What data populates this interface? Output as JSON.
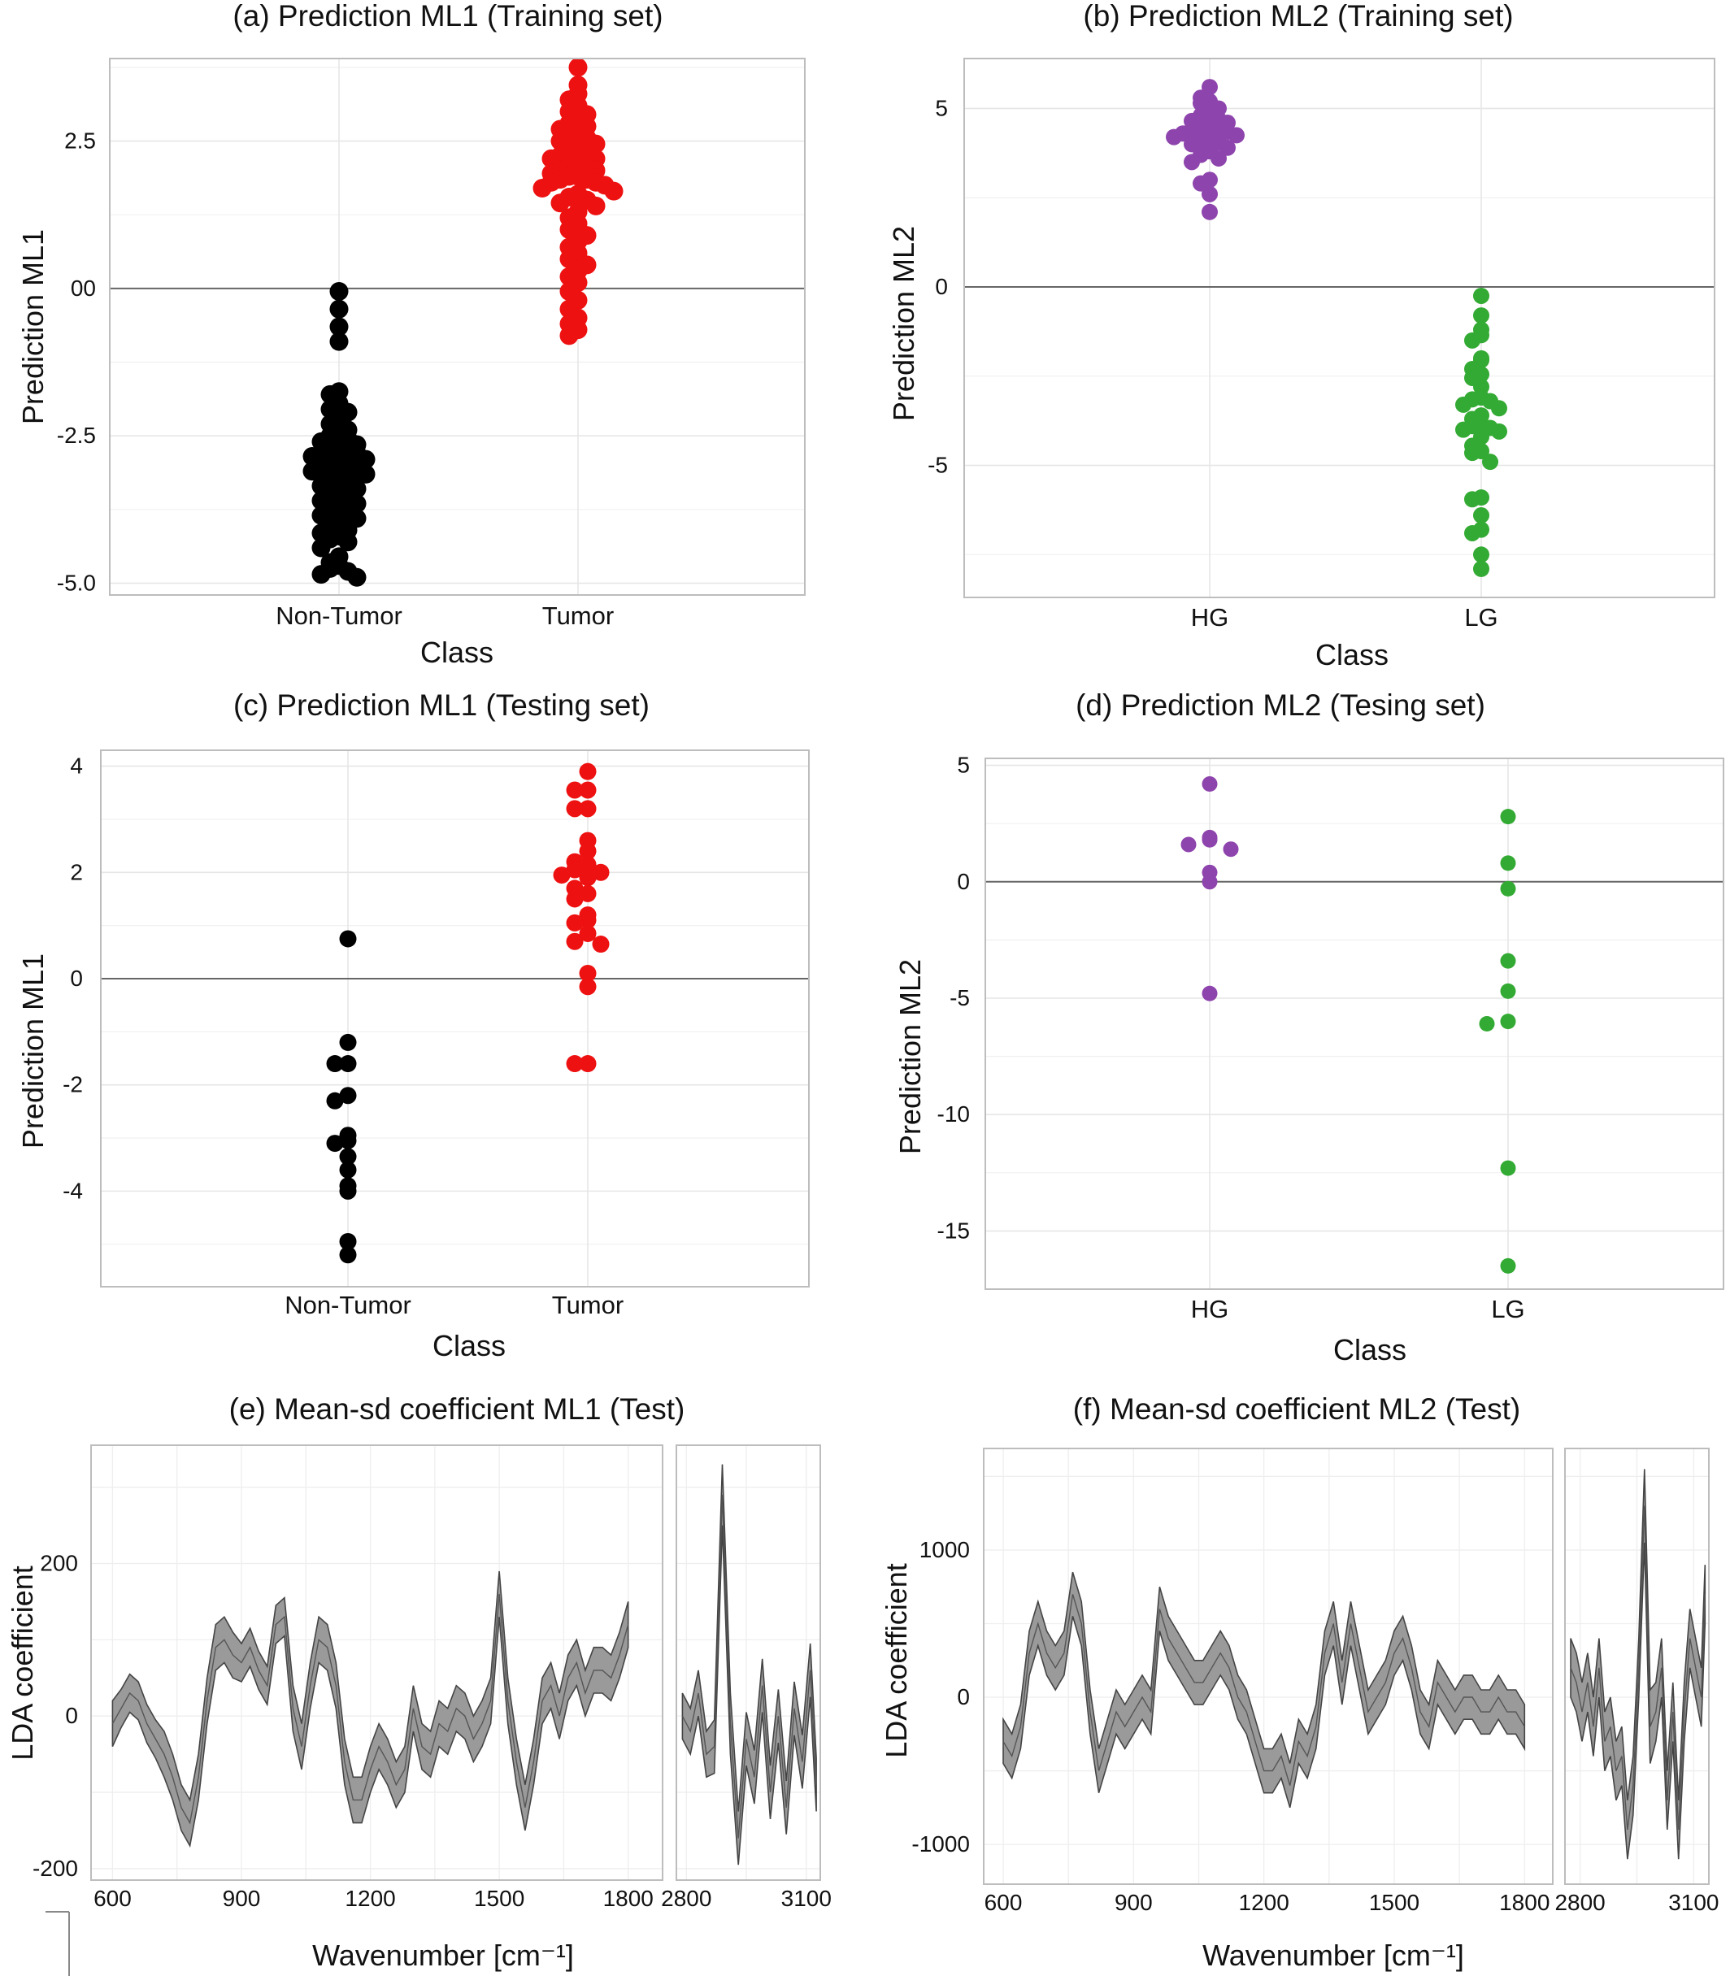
{
  "figure": {
    "panels": {
      "a": {
        "title": "(a) Prediction ML1 (Training set)",
        "xlabel": "Class",
        "ylabel": "Prediction ML1"
      },
      "b": {
        "title": "(b) Prediction ML2 (Training set)",
        "xlabel": "Class",
        "ylabel": "Prediction ML2"
      },
      "c": {
        "title": "(c) Prediction ML1 (Testing set)",
        "xlabel": "Class",
        "ylabel": "Prediction ML1"
      },
      "d": {
        "title": "(d) Prediction ML2 (Tesing set)",
        "xlabel": "Class",
        "ylabel": "Prediction ML2"
      },
      "e": {
        "title": "(e) Mean-sd coefficient ML1 (Test)",
        "xlabel": "Wavenumber [cm⁻¹]",
        "ylabel": "LDA coefficient"
      },
      "f": {
        "title": "(f) Mean-sd coefficient ML2 (Test)",
        "xlabel": "Wavenumber [cm⁻¹]",
        "ylabel": "LDA coefficient"
      }
    }
  },
  "chart_data": [
    {
      "id": "a",
      "type": "scatter",
      "title": "(a) Prediction ML1 (Training set)",
      "xlabel": "Class",
      "ylabel": "Prediction ML1",
      "categories": [
        "Non-Tumor",
        "Tumor"
      ],
      "ylim": [
        -5.2,
        3.9
      ],
      "yticks": [
        -5.0,
        -2.5,
        0,
        2.5
      ],
      "ytick_labels": [
        "-5.0",
        "-2.5",
        "00",
        "2.5"
      ],
      "hline": 0,
      "grid": true,
      "series": [
        {
          "category": "Non-Tumor",
          "color": "#000000",
          "values": [
            -0.05,
            -0.35,
            -0.65,
            -0.9,
            -1.75,
            -1.8,
            -1.95,
            -2.05,
            -2.1,
            -2.2,
            -2.3,
            -2.4,
            -2.45,
            -2.5,
            -2.55,
            -2.6,
            -2.65,
            -2.7,
            -2.7,
            -2.75,
            -2.8,
            -2.8,
            -2.85,
            -2.9,
            -2.95,
            -3.0,
            -3.0,
            -3.05,
            -3.1,
            -3.1,
            -3.15,
            -3.2,
            -3.25,
            -3.3,
            -3.35,
            -3.4,
            -3.45,
            -3.5,
            -3.55,
            -3.6,
            -3.65,
            -3.7,
            -3.75,
            -3.8,
            -3.85,
            -3.9,
            -4.0,
            -4.05,
            -4.1,
            -4.15,
            -4.2,
            -4.25,
            -4.3,
            -4.4,
            -4.55,
            -4.65,
            -4.7,
            -4.75,
            -4.8,
            -4.85,
            -4.9
          ]
        },
        {
          "category": "Tumor",
          "color": "#ee1111",
          "values": [
            3.75,
            3.45,
            3.3,
            3.2,
            3.1,
            3.0,
            2.95,
            2.9,
            2.8,
            2.75,
            2.7,
            2.65,
            2.6,
            2.55,
            2.5,
            2.45,
            2.4,
            2.35,
            2.3,
            2.25,
            2.2,
            2.2,
            2.15,
            2.1,
            2.05,
            2.0,
            2.0,
            1.95,
            1.9,
            1.9,
            1.85,
            1.85,
            1.8,
            1.8,
            1.75,
            1.7,
            1.65,
            1.6,
            1.55,
            1.5,
            1.45,
            1.4,
            1.3,
            1.2,
            1.1,
            1.0,
            0.9,
            0.8,
            0.7,
            0.6,
            0.5,
            0.4,
            0.3,
            0.2,
            0.1,
            -0.05,
            -0.2,
            -0.35,
            -0.5,
            -0.6,
            -0.7,
            -0.8
          ]
        }
      ]
    },
    {
      "id": "b",
      "type": "scatter",
      "title": "(b) Prediction ML2 (Training set)",
      "xlabel": "Class",
      "ylabel": "Prediction ML2",
      "categories": [
        "HG",
        "LG"
      ],
      "ylim": [
        -8.7,
        6.4
      ],
      "yticks": [
        -5,
        0,
        5
      ],
      "ytick_labels": [
        "-5",
        "0",
        "5"
      ],
      "hline": 0,
      "grid": true,
      "series": [
        {
          "category": "HG",
          "color": "#8e44ad",
          "values": [
            5.6,
            5.3,
            5.2,
            5.15,
            5.0,
            4.9,
            4.8,
            4.7,
            4.65,
            4.6,
            4.55,
            4.5,
            4.45,
            4.4,
            4.35,
            4.3,
            4.25,
            4.2,
            4.15,
            4.1,
            4.05,
            4.0,
            3.9,
            3.8,
            3.7,
            3.6,
            3.5,
            3.0,
            2.9,
            2.6,
            2.1
          ]
        },
        {
          "category": "LG",
          "color": "#33aa33",
          "values": [
            -0.25,
            -0.8,
            -1.2,
            -1.35,
            -1.5,
            -2.0,
            -2.05,
            -2.3,
            -2.45,
            -2.55,
            -2.8,
            -3.1,
            -3.15,
            -3.2,
            -3.3,
            -3.4,
            -3.6,
            -3.7,
            -3.85,
            -3.9,
            -3.95,
            -4.0,
            -4.05,
            -4.2,
            -4.45,
            -4.6,
            -4.65,
            -4.9,
            -5.9,
            -5.95,
            -6.4,
            -6.8,
            -6.9,
            -7.5,
            -7.9
          ]
        }
      ]
    },
    {
      "id": "c",
      "type": "scatter",
      "title": "(c) Prediction ML1 (Testing set)",
      "xlabel": "Class",
      "ylabel": "Prediction ML1",
      "categories": [
        "Non-Tumor",
        "Tumor"
      ],
      "ylim": [
        -5.8,
        4.3
      ],
      "yticks": [
        -4,
        -2,
        0,
        2,
        4
      ],
      "ytick_labels": [
        "-4",
        "-2",
        "0",
        "2",
        "4"
      ],
      "hline": 0,
      "grid": true,
      "series": [
        {
          "category": "Non-Tumor",
          "color": "#000000",
          "values": [
            0.75,
            -1.2,
            -1.6,
            -1.6,
            -2.2,
            -2.3,
            -2.95,
            -3.05,
            -3.1,
            -3.35,
            -3.6,
            -3.9,
            -4.0,
            -4.95,
            -5.2
          ]
        },
        {
          "category": "Tumor",
          "color": "#ee1111",
          "values": [
            3.9,
            3.55,
            3.55,
            3.2,
            3.2,
            2.6,
            2.4,
            2.2,
            2.15,
            2.05,
            2.0,
            1.95,
            1.9,
            1.7,
            1.6,
            1.5,
            1.2,
            1.1,
            1.05,
            0.85,
            0.7,
            0.65,
            0.1,
            -0.15,
            -1.6,
            -1.6
          ]
        }
      ]
    },
    {
      "id": "d",
      "type": "scatter",
      "title": "(d) Prediction ML2 (Tesing set)",
      "xlabel": "Class",
      "ylabel": "Prediction ML2",
      "categories": [
        "HG",
        "LG"
      ],
      "ylim": [
        -17.5,
        5.3
      ],
      "yticks": [
        -15,
        -10,
        -5,
        0,
        5
      ],
      "ytick_labels": [
        "-15",
        "-10",
        "-5",
        "0",
        "5"
      ],
      "hline": 0,
      "grid": true,
      "series": [
        {
          "category": "HG",
          "color": "#8e44ad",
          "values": [
            4.2,
            1.9,
            1.8,
            1.6,
            1.4,
            0.4,
            0.0,
            -4.8
          ]
        },
        {
          "category": "LG",
          "color": "#33aa33",
          "values": [
            2.8,
            0.8,
            -0.3,
            -3.4,
            -4.7,
            -6.0,
            -6.1,
            -12.3,
            -16.5
          ]
        }
      ]
    },
    {
      "id": "e",
      "type": "area",
      "title": "(e) Mean-sd coefficient ML1 (Test)",
      "xlabel": "Wavenumber [cm⁻¹]",
      "ylabel": "LDA coefficient",
      "segments": [
        {
          "xlim": [
            550,
            1880
          ],
          "ylim": [
            -215,
            355
          ],
          "xticks": [
            600,
            900,
            1200,
            1500,
            1800
          ],
          "x": [
            600,
            620,
            640,
            660,
            680,
            700,
            720,
            740,
            760,
            780,
            800,
            820,
            840,
            860,
            880,
            900,
            920,
            940,
            960,
            980,
            1000,
            1020,
            1040,
            1060,
            1080,
            1100,
            1120,
            1140,
            1160,
            1180,
            1200,
            1220,
            1240,
            1260,
            1280,
            1300,
            1320,
            1340,
            1360,
            1380,
            1400,
            1420,
            1440,
            1460,
            1480,
            1500,
            1520,
            1540,
            1560,
            1580,
            1600,
            1620,
            1640,
            1660,
            1680,
            1700,
            1720,
            1740,
            1760,
            1780,
            1800
          ],
          "mean": [
            -10,
            10,
            30,
            20,
            -10,
            -30,
            -50,
            -80,
            -120,
            -140,
            -80,
            20,
            90,
            100,
            80,
            70,
            90,
            60,
            40,
            120,
            130,
            10,
            -40,
            40,
            100,
            90,
            40,
            -60,
            -110,
            -110,
            -70,
            -40,
            -60,
            -90,
            -70,
            10,
            -40,
            -50,
            -10,
            -20,
            10,
            0,
            -30,
            -10,
            20,
            160,
            20,
            -60,
            -120,
            -60,
            20,
            40,
            0,
            50,
            70,
            30,
            60,
            60,
            50,
            80,
            120
          ],
          "sd": [
            30,
            25,
            25,
            25,
            25,
            25,
            30,
            30,
            30,
            30,
            30,
            30,
            30,
            30,
            30,
            25,
            25,
            25,
            25,
            25,
            25,
            30,
            30,
            30,
            30,
            30,
            30,
            30,
            30,
            30,
            30,
            30,
            30,
            30,
            30,
            30,
            30,
            30,
            30,
            30,
            30,
            30,
            30,
            30,
            30,
            30,
            30,
            30,
            30,
            30,
            30,
            30,
            30,
            30,
            30,
            30,
            30,
            30,
            30,
            30,
            30
          ]
        },
        {
          "xlim": [
            2775,
            3135
          ],
          "ylim": [
            -215,
            355
          ],
          "xticks": [
            2800,
            3100
          ],
          "x": [
            2790,
            2810,
            2830,
            2850,
            2870,
            2890,
            2910,
            2930,
            2950,
            2970,
            2990,
            3010,
            3030,
            3050,
            3070,
            3090,
            3110,
            3125
          ],
          "mean": [
            0,
            -20,
            30,
            -50,
            -40,
            290,
            -10,
            -160,
            -30,
            -80,
            40,
            -100,
            0,
            -120,
            10,
            -60,
            60,
            -90
          ],
          "sd": [
            30,
            30,
            30,
            30,
            35,
            40,
            40,
            35,
            35,
            35,
            35,
            35,
            35,
            35,
            35,
            35,
            35,
            35
          ]
        }
      ]
    },
    {
      "id": "f",
      "type": "area",
      "title": "(f) Mean-sd coefficient ML2 (Test)",
      "xlabel": "Wavenumber [cm⁻¹]",
      "ylabel": "LDA coefficient",
      "segments": [
        {
          "xlim": [
            555,
            1865
          ],
          "ylim": [
            -1270,
            1690
          ],
          "xticks": [
            600,
            900,
            1200,
            1500,
            1800
          ],
          "x": [
            600,
            620,
            640,
            660,
            680,
            700,
            720,
            740,
            760,
            780,
            800,
            820,
            840,
            860,
            880,
            900,
            920,
            940,
            960,
            980,
            1000,
            1020,
            1040,
            1060,
            1080,
            1100,
            1120,
            1140,
            1160,
            1180,
            1200,
            1220,
            1240,
            1260,
            1280,
            1300,
            1320,
            1340,
            1360,
            1380,
            1400,
            1420,
            1440,
            1460,
            1480,
            1500,
            1520,
            1540,
            1560,
            1580,
            1600,
            1620,
            1640,
            1660,
            1680,
            1700,
            1720,
            1740,
            1760,
            1780,
            1800
          ],
          "mean": [
            -300,
            -400,
            -200,
            300,
            500,
            300,
            200,
            300,
            700,
            500,
            -100,
            -500,
            -300,
            -100,
            -200,
            -100,
            0,
            -100,
            600,
            400,
            300,
            200,
            100,
            100,
            200,
            300,
            200,
            0,
            -100,
            -300,
            -500,
            -500,
            -400,
            -600,
            -300,
            -400,
            -200,
            300,
            500,
            100,
            500,
            200,
            -100,
            0,
            100,
            300,
            400,
            200,
            -100,
            -200,
            100,
            0,
            -100,
            0,
            0,
            -100,
            -100,
            0,
            -100,
            -100,
            -200
          ],
          "sd": [
            150,
            150,
            150,
            150,
            150,
            150,
            150,
            150,
            150,
            150,
            150,
            150,
            150,
            150,
            150,
            150,
            150,
            150,
            150,
            150,
            150,
            150,
            150,
            150,
            150,
            150,
            150,
            150,
            150,
            150,
            150,
            150,
            150,
            150,
            150,
            150,
            150,
            150,
            150,
            150,
            150,
            150,
            150,
            150,
            150,
            150,
            150,
            150,
            150,
            150,
            150,
            150,
            150,
            150,
            150,
            150,
            150,
            150,
            150,
            150,
            150
          ]
        },
        {
          "xlim": [
            2760,
            3140
          ],
          "ylim": [
            -1270,
            1690
          ],
          "xticks": [
            2800,
            3100
          ],
          "x": [
            2775,
            2790,
            2805,
            2820,
            2835,
            2850,
            2865,
            2880,
            2895,
            2910,
            2925,
            2940,
            2955,
            2970,
            2985,
            3000,
            3015,
            3030,
            3045,
            3060,
            3075,
            3090,
            3105,
            3120,
            3130
          ],
          "mean": [
            200,
            100,
            -100,
            100,
            -200,
            200,
            -300,
            -200,
            -500,
            -400,
            -900,
            -600,
            200,
            1300,
            -200,
            -100,
            200,
            -700,
            -100,
            -900,
            -100,
            400,
            200,
            0,
            700
          ],
          "sd": [
            200,
            200,
            200,
            200,
            200,
            200,
            200,
            200,
            200,
            200,
            200,
            200,
            200,
            250,
            250,
            200,
            200,
            200,
            200,
            200,
            200,
            200,
            200,
            200,
            200
          ]
        }
      ]
    }
  ]
}
